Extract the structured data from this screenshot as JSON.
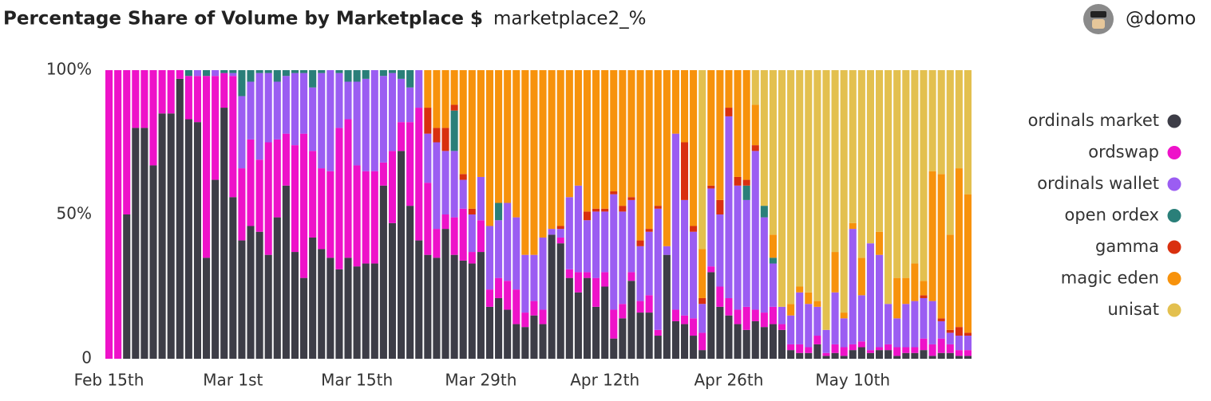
{
  "user": "@domo",
  "chart_data": {
    "type": "stacked-bar-100",
    "title": "Percentage Share of Volume by Marketplace $",
    "subtitle": "marketplace2_%",
    "categories": [
      "Feb 15th",
      null,
      null,
      null,
      null,
      null,
      null,
      null,
      null,
      null,
      null,
      null,
      null,
      null,
      "Mar 1st",
      null,
      null,
      null,
      null,
      null,
      null,
      null,
      null,
      null,
      null,
      null,
      null,
      null,
      "Mar 15th",
      null,
      null,
      null,
      null,
      null,
      null,
      null,
      null,
      null,
      null,
      null,
      null,
      null,
      "Mar 29th",
      null,
      null,
      null,
      null,
      null,
      null,
      null,
      null,
      null,
      null,
      null,
      null,
      null,
      "Apr 12th",
      null,
      null,
      null,
      null,
      null,
      null,
      null,
      null,
      null,
      null,
      null,
      null,
      null,
      "Apr 26th",
      null,
      null,
      null,
      null,
      null,
      null,
      null,
      null,
      null,
      null,
      null,
      null,
      null,
      "May 10th",
      null,
      null,
      null,
      null,
      null,
      null,
      null,
      null,
      null,
      null,
      null,
      null,
      null
    ],
    "series": [
      {
        "name": "ordinals market",
        "color": "#3d3d47",
        "values": [
          0,
          0,
          50,
          80,
          80,
          67,
          85,
          85,
          97,
          83,
          82,
          35,
          62,
          87,
          56,
          41,
          46,
          44,
          36,
          49,
          60,
          37,
          28,
          42,
          38,
          35,
          31,
          35,
          32,
          33,
          33,
          60,
          47,
          72,
          53,
          41,
          36,
          35,
          45,
          36,
          34,
          33,
          37,
          18,
          21,
          17,
          12,
          11,
          15,
          12,
          43,
          40,
          28,
          23,
          28,
          18,
          25,
          7,
          14,
          27,
          16,
          16,
          8,
          36,
          13,
          12,
          8,
          3,
          30,
          18,
          15,
          12,
          10,
          13,
          11,
          12,
          10,
          3,
          2,
          2,
          5,
          1,
          2,
          1,
          3,
          4,
          2,
          3,
          3,
          1,
          2,
          2,
          3,
          1,
          2,
          2,
          1,
          1
        ]
      },
      {
        "name": "ordswap",
        "color": "#ee12c9",
        "values": [
          100,
          100,
          50,
          20,
          20,
          33,
          15,
          15,
          3,
          15,
          16,
          63,
          36,
          12,
          42,
          25,
          30,
          25,
          39,
          27,
          18,
          37,
          50,
          30,
          28,
          30,
          49,
          48,
          35,
          32,
          32,
          8,
          25,
          10,
          29,
          46,
          25,
          10,
          5,
          13,
          18,
          4,
          11,
          6,
          7,
          10,
          12,
          5,
          5,
          5,
          0,
          2,
          3,
          7,
          2,
          10,
          5,
          10,
          5,
          3,
          4,
          6,
          2,
          0,
          4,
          3,
          6,
          6,
          2,
          7,
          6,
          5,
          8,
          4,
          5,
          6,
          2,
          2,
          3,
          2,
          3,
          1,
          3,
          3,
          2,
          2,
          1,
          1,
          2,
          3,
          2,
          2,
          4,
          4,
          5,
          3,
          2,
          2
        ]
      },
      {
        "name": "ordinals wallet",
        "color": "#9b5df2",
        "values": [
          0,
          0,
          0,
          0,
          0,
          0,
          0,
          0,
          0,
          0,
          2,
          0,
          2,
          0,
          1,
          25,
          20,
          30,
          24,
          20,
          20,
          25,
          21,
          22,
          33,
          35,
          19,
          13,
          29,
          32,
          35,
          30,
          27,
          15,
          12,
          13,
          17,
          30,
          22,
          23,
          10,
          13,
          15,
          22,
          20,
          27,
          25,
          20,
          16,
          25,
          2,
          3,
          25,
          30,
          18,
          23,
          21,
          40,
          32,
          25,
          19,
          22,
          42,
          3,
          61,
          40,
          30,
          10,
          27,
          25,
          63,
          43,
          37,
          55,
          33,
          15,
          6,
          10,
          18,
          15,
          10,
          8,
          18,
          10,
          40,
          16,
          37,
          32,
          14,
          10,
          15,
          16,
          14,
          15,
          6,
          4,
          5,
          5
        ]
      },
      {
        "name": "open ordex",
        "color": "#2a7f79",
        "values": [
          0,
          0,
          0,
          0,
          0,
          0,
          0,
          0,
          0,
          2,
          0,
          2,
          0,
          1,
          1,
          9,
          4,
          1,
          1,
          4,
          2,
          1,
          1,
          6,
          1,
          0,
          1,
          4,
          4,
          3,
          0,
          2,
          1,
          3,
          6,
          0,
          0,
          0,
          0,
          14,
          0,
          0,
          0,
          0,
          6,
          0,
          0,
          0,
          0,
          0,
          0,
          0,
          0,
          0,
          0,
          0,
          0,
          0,
          0,
          0,
          0,
          0,
          0,
          0,
          0,
          0,
          0,
          0,
          0,
          0,
          0,
          0,
          5,
          0,
          4,
          2,
          0,
          0,
          0,
          0,
          0,
          0,
          0,
          0,
          0,
          0,
          0,
          0,
          0,
          0,
          0,
          0,
          0,
          0,
          0,
          0,
          0,
          0
        ]
      },
      {
        "name": "gamma",
        "color": "#d9300f",
        "values": [
          0,
          0,
          0,
          0,
          0,
          0,
          0,
          0,
          0,
          0,
          0,
          0,
          0,
          0,
          0,
          0,
          0,
          0,
          0,
          0,
          0,
          0,
          0,
          0,
          0,
          0,
          0,
          0,
          0,
          0,
          0,
          0,
          0,
          0,
          0,
          0,
          9,
          5,
          8,
          2,
          2,
          2,
          0,
          0,
          0,
          0,
          0,
          0,
          0,
          0,
          0,
          1,
          0,
          0,
          3,
          1,
          1,
          1,
          2,
          1,
          2,
          1,
          1,
          0,
          0,
          20,
          2,
          2,
          1,
          5,
          3,
          3,
          2,
          2,
          0,
          0,
          0,
          0,
          0,
          0,
          0,
          0,
          0,
          0,
          0,
          0,
          0,
          0,
          0,
          0,
          0,
          0,
          1,
          0,
          1,
          1,
          3,
          1
        ]
      },
      {
        "name": "magic eden",
        "color": "#f7920c",
        "values": [
          0,
          0,
          0,
          0,
          0,
          0,
          0,
          0,
          0,
          0,
          0,
          0,
          0,
          0,
          0,
          0,
          0,
          0,
          0,
          0,
          0,
          0,
          0,
          0,
          0,
          0,
          0,
          0,
          0,
          0,
          0,
          0,
          0,
          0,
          0,
          0,
          13,
          20,
          20,
          12,
          36,
          48,
          37,
          54,
          46,
          46,
          51,
          64,
          64,
          58,
          55,
          54,
          44,
          40,
          49,
          48,
          48,
          42,
          47,
          44,
          59,
          55,
          47,
          61,
          22,
          25,
          54,
          17,
          40,
          45,
          13,
          37,
          38,
          14,
          0,
          8,
          0,
          4,
          2,
          4,
          2,
          0,
          14,
          2,
          2,
          13,
          0,
          8,
          0,
          14,
          9,
          13,
          5,
          45,
          50,
          33,
          55,
          48
        ]
      },
      {
        "name": "unisat",
        "color": "#e3c04f",
        "values": [
          0,
          0,
          0,
          0,
          0,
          0,
          0,
          0,
          0,
          0,
          0,
          0,
          0,
          0,
          0,
          0,
          0,
          0,
          0,
          0,
          0,
          0,
          0,
          0,
          0,
          0,
          0,
          0,
          0,
          0,
          0,
          0,
          0,
          0,
          0,
          0,
          0,
          0,
          0,
          0,
          0,
          0,
          0,
          0,
          0,
          0,
          0,
          0,
          0,
          0,
          0,
          0,
          0,
          0,
          0,
          0,
          0,
          0,
          0,
          0,
          0,
          0,
          0,
          0,
          0,
          0,
          0,
          62,
          0,
          0,
          0,
          0,
          0,
          12,
          47,
          57,
          82,
          81,
          75,
          77,
          80,
          90,
          63,
          84,
          53,
          65,
          60,
          56,
          81,
          72,
          72,
          67,
          73,
          35,
          36,
          57,
          34,
          43
        ]
      }
    ],
    "ylim": [
      0,
      100
    ],
    "yticks": [
      0,
      {
        "value": 50,
        "label": "50%"
      },
      {
        "value": 100,
        "label": "100%"
      }
    ],
    "grid": false,
    "legend": "right"
  }
}
